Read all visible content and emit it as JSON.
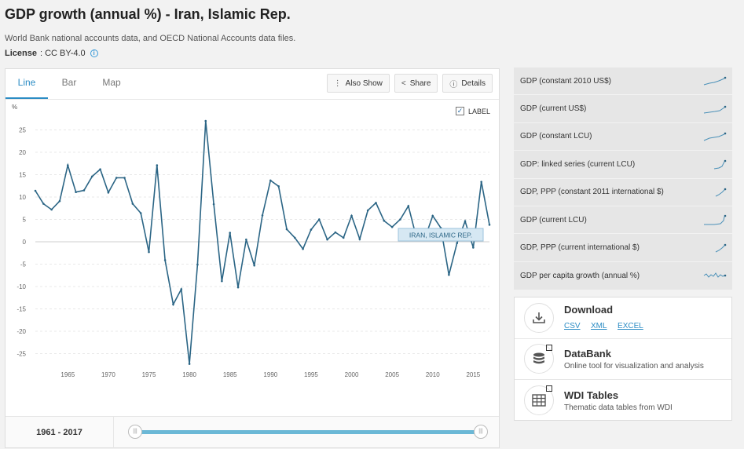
{
  "header": {
    "title": "GDP growth (annual %) - Iran, Islamic Rep.",
    "source": "World Bank national accounts data, and OECD National Accounts data files.",
    "license_label": "License",
    "license_value": ": CC BY-4.0"
  },
  "tabs": [
    {
      "label": "Line",
      "active": true
    },
    {
      "label": "Bar",
      "active": false
    },
    {
      "label": "Map",
      "active": false
    }
  ],
  "toolbar": {
    "also_show": "Also Show",
    "share": "Share",
    "details": "Details"
  },
  "label_toggle": {
    "label": "LABEL",
    "checked": true
  },
  "range": {
    "label": "1961 - 2017"
  },
  "chart_data": {
    "type": "line",
    "ylabel": "%",
    "x_range": [
      1961,
      2017
    ],
    "ylim": [
      -27.5,
      27.5
    ],
    "y_ticks": [
      25,
      20,
      15,
      10,
      5,
      0,
      -5,
      -10,
      -15,
      -20,
      -25
    ],
    "x_ticks": [
      1965,
      1970,
      1975,
      1980,
      1985,
      1990,
      1995,
      2000,
      2005,
      2010,
      2015
    ],
    "grid": true,
    "series": [
      {
        "name": "IRAN, ISLAMIC REP.",
        "color": "#2b6585",
        "x": [
          1961,
          1962,
          1963,
          1964,
          1965,
          1966,
          1967,
          1968,
          1969,
          1970,
          1971,
          1972,
          1973,
          1974,
          1975,
          1976,
          1977,
          1978,
          1979,
          1980,
          1981,
          1982,
          1983,
          1984,
          1985,
          1986,
          1987,
          1988,
          1989,
          1990,
          1991,
          1992,
          1993,
          1994,
          1995,
          1996,
          1997,
          1998,
          1999,
          2000,
          2001,
          2002,
          2003,
          2004,
          2005,
          2006,
          2007,
          2008,
          2009,
          2010,
          2011,
          2012,
          2013,
          2014,
          2015,
          2016,
          2017
        ],
        "values": [
          11.4,
          8.5,
          7.2,
          9.1,
          17.1,
          11.1,
          11.5,
          14.6,
          16.2,
          11.0,
          14.3,
          14.3,
          8.5,
          6.4,
          -2.3,
          17.1,
          -4.1,
          -14.0,
          -10.6,
          -27.3,
          -5.1,
          27.0,
          8.4,
          -8.8,
          2.0,
          -10.2,
          0.5,
          -5.3,
          5.9,
          13.7,
          12.4,
          2.8,
          0.9,
          -1.6,
          2.7,
          5.0,
          0.5,
          2.1,
          0.9,
          5.8,
          0.6,
          7.0,
          8.7,
          4.7,
          3.3,
          5.0,
          8.0,
          0.9,
          0.6,
          5.8,
          3.1,
          -7.4,
          -0.3,
          4.6,
          -1.3,
          13.4,
          3.8
        ]
      }
    ]
  },
  "indicators": [
    {
      "label": "GDP (constant 2010 US$)"
    },
    {
      "label": "GDP (current US$)"
    },
    {
      "label": "GDP (constant LCU)"
    },
    {
      "label": "GDP: linked series (current LCU)"
    },
    {
      "label": "GDP, PPP (constant 2011 international $)"
    },
    {
      "label": "GDP (current LCU)"
    },
    {
      "label": "GDP, PPP (current international $)"
    },
    {
      "label": "GDP per capita growth (annual %)"
    }
  ],
  "resources": {
    "download": {
      "title": "Download",
      "links": [
        "CSV",
        "XML",
        "EXCEL"
      ]
    },
    "databank": {
      "title": "DataBank",
      "subtitle": "Online tool for visualization and analysis"
    },
    "wdi": {
      "title": "WDI Tables",
      "subtitle": "Thematic data tables from WDI"
    }
  },
  "icons": [
    "info-icon",
    "ellipsis-icon",
    "share-icon",
    "info-circle-icon",
    "checkbox-icon",
    "download-icon",
    "database-icon",
    "table-icon",
    "external-link-icon",
    "slider-handle-icon"
  ],
  "colors": {
    "accent": "#2b8cc4",
    "line": "#2b6585",
    "slider": "#6bb8d6",
    "panel": "#e6e6e6"
  }
}
